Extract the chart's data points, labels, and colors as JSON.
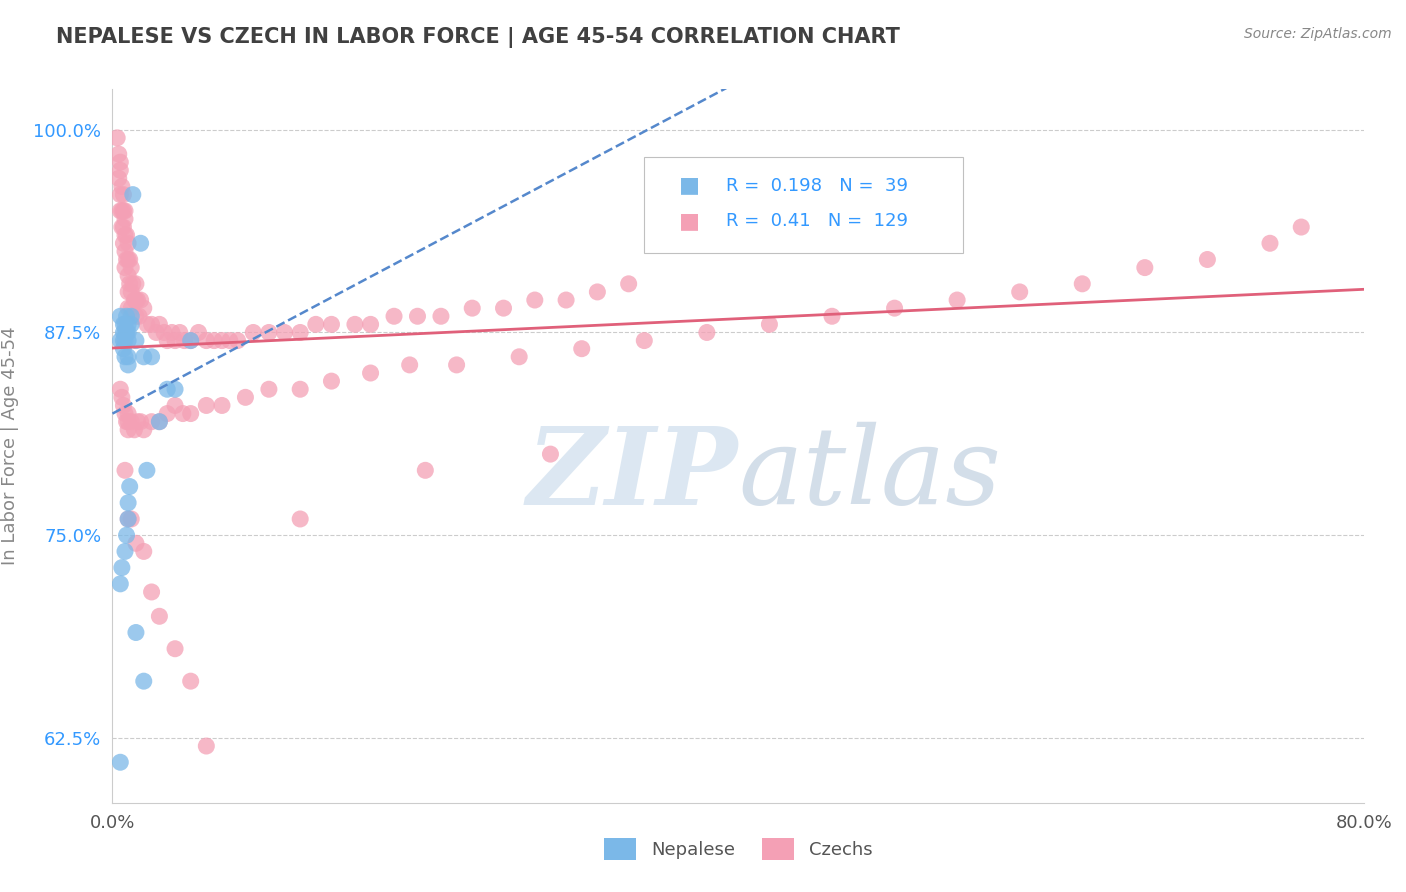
{
  "title": "NEPALESE VS CZECH IN LABOR FORCE | AGE 45-54 CORRELATION CHART",
  "ylabel": "In Labor Force | Age 45-54",
  "source_text": "Source: ZipAtlas.com",
  "xlim": [
    0.0,
    0.8
  ],
  "ylim": [
    0.585,
    1.025
  ],
  "xticks": [
    0.0,
    0.8
  ],
  "xticklabels": [
    "0.0%",
    "80.0%"
  ],
  "yticks": [
    0.625,
    0.75,
    0.875,
    1.0
  ],
  "yticklabels": [
    "62.5%",
    "75.0%",
    "87.5%",
    "100.0%"
  ],
  "nepalese_color": "#7bb8e8",
  "czech_color": "#f4a0b5",
  "nepalese_R": 0.198,
  "nepalese_N": 39,
  "czech_R": 0.41,
  "czech_N": 129,
  "nepalese_x": [
    0.005,
    0.005,
    0.005,
    0.007,
    0.007,
    0.007,
    0.007,
    0.008,
    0.008,
    0.008,
    0.008,
    0.009,
    0.009,
    0.01,
    0.01,
    0.01,
    0.01,
    0.01,
    0.012,
    0.012,
    0.013,
    0.015,
    0.018,
    0.02,
    0.022,
    0.025,
    0.03,
    0.035,
    0.04,
    0.05,
    0.005,
    0.006,
    0.008,
    0.009,
    0.01,
    0.01,
    0.011,
    0.015,
    0.02
  ],
  "nepalese_y": [
    0.61,
    0.885,
    0.87,
    0.88,
    0.875,
    0.87,
    0.865,
    0.88,
    0.875,
    0.87,
    0.86,
    0.885,
    0.875,
    0.88,
    0.875,
    0.87,
    0.86,
    0.855,
    0.885,
    0.88,
    0.96,
    0.87,
    0.93,
    0.86,
    0.79,
    0.86,
    0.82,
    0.84,
    0.84,
    0.87,
    0.72,
    0.73,
    0.74,
    0.75,
    0.76,
    0.77,
    0.78,
    0.69,
    0.66
  ],
  "czech_x": [
    0.003,
    0.004,
    0.004,
    0.005,
    0.005,
    0.005,
    0.005,
    0.006,
    0.006,
    0.006,
    0.007,
    0.007,
    0.007,
    0.007,
    0.008,
    0.008,
    0.008,
    0.008,
    0.008,
    0.009,
    0.009,
    0.01,
    0.01,
    0.01,
    0.01,
    0.01,
    0.011,
    0.011,
    0.012,
    0.012,
    0.012,
    0.013,
    0.014,
    0.015,
    0.015,
    0.015,
    0.016,
    0.017,
    0.018,
    0.02,
    0.022,
    0.025,
    0.028,
    0.03,
    0.033,
    0.035,
    0.038,
    0.04,
    0.043,
    0.046,
    0.05,
    0.055,
    0.06,
    0.065,
    0.07,
    0.075,
    0.08,
    0.09,
    0.1,
    0.11,
    0.12,
    0.13,
    0.14,
    0.155,
    0.165,
    0.18,
    0.195,
    0.21,
    0.23,
    0.25,
    0.27,
    0.29,
    0.31,
    0.33,
    0.005,
    0.006,
    0.007,
    0.008,
    0.009,
    0.01,
    0.01,
    0.01,
    0.012,
    0.014,
    0.016,
    0.018,
    0.02,
    0.025,
    0.03,
    0.035,
    0.04,
    0.045,
    0.05,
    0.06,
    0.07,
    0.085,
    0.1,
    0.12,
    0.14,
    0.165,
    0.19,
    0.22,
    0.26,
    0.3,
    0.34,
    0.38,
    0.42,
    0.46,
    0.5,
    0.54,
    0.58,
    0.62,
    0.66,
    0.7,
    0.74,
    0.76,
    0.12,
    0.2,
    0.28,
    0.008,
    0.01,
    0.012,
    0.015,
    0.02,
    0.025,
    0.03,
    0.04,
    0.05,
    0.06
  ],
  "czech_y": [
    0.995,
    0.985,
    0.97,
    0.98,
    0.975,
    0.96,
    0.95,
    0.965,
    0.95,
    0.94,
    0.96,
    0.95,
    0.94,
    0.93,
    0.95,
    0.945,
    0.935,
    0.925,
    0.915,
    0.935,
    0.92,
    0.93,
    0.92,
    0.91,
    0.9,
    0.89,
    0.92,
    0.905,
    0.915,
    0.9,
    0.89,
    0.905,
    0.895,
    0.905,
    0.895,
    0.885,
    0.895,
    0.885,
    0.895,
    0.89,
    0.88,
    0.88,
    0.875,
    0.88,
    0.875,
    0.87,
    0.875,
    0.87,
    0.875,
    0.87,
    0.87,
    0.875,
    0.87,
    0.87,
    0.87,
    0.87,
    0.87,
    0.875,
    0.875,
    0.875,
    0.875,
    0.88,
    0.88,
    0.88,
    0.88,
    0.885,
    0.885,
    0.885,
    0.89,
    0.89,
    0.895,
    0.895,
    0.9,
    0.905,
    0.84,
    0.835,
    0.83,
    0.825,
    0.82,
    0.825,
    0.82,
    0.815,
    0.82,
    0.815,
    0.82,
    0.82,
    0.815,
    0.82,
    0.82,
    0.825,
    0.83,
    0.825,
    0.825,
    0.83,
    0.83,
    0.835,
    0.84,
    0.84,
    0.845,
    0.85,
    0.855,
    0.855,
    0.86,
    0.865,
    0.87,
    0.875,
    0.88,
    0.885,
    0.89,
    0.895,
    0.9,
    0.905,
    0.915,
    0.92,
    0.93,
    0.94,
    0.76,
    0.79,
    0.8,
    0.79,
    0.76,
    0.76,
    0.745,
    0.74,
    0.715,
    0.7,
    0.68,
    0.66,
    0.62
  ],
  "background_color": "#ffffff",
  "grid_color": "#cccccc",
  "title_color": "#404040",
  "axis_color": "#888888",
  "legend_color": "#3399ff",
  "watermark_color_ZIP": "#c8d8e8",
  "watermark_color_atlas": "#b8c8d8"
}
